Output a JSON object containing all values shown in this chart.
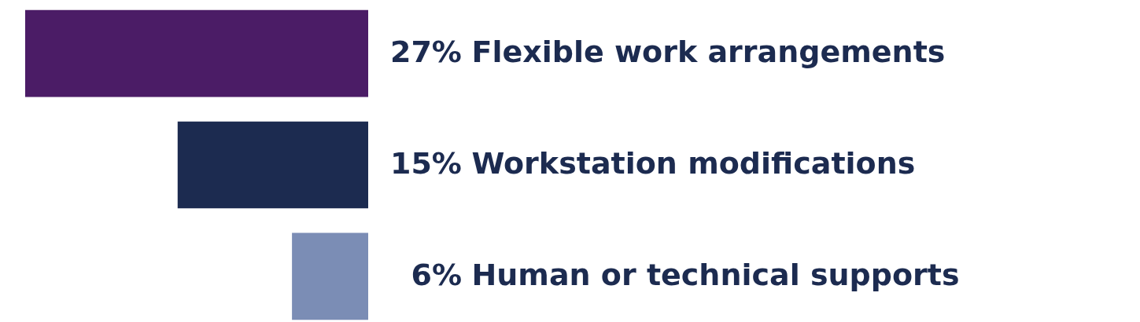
{
  "chart_data": {
    "type": "bar",
    "orientation": "horizontal",
    "categories": [
      "Flexible work arrangements",
      "Workstation modifications",
      "Human or technical supports"
    ],
    "values": [
      27,
      15,
      6
    ],
    "colors": [
      "#4b1c66",
      "#1c2b50",
      "#7b8db5"
    ],
    "value_labels": [
      "27%",
      "15%",
      "6%"
    ],
    "legend": false
  }
}
